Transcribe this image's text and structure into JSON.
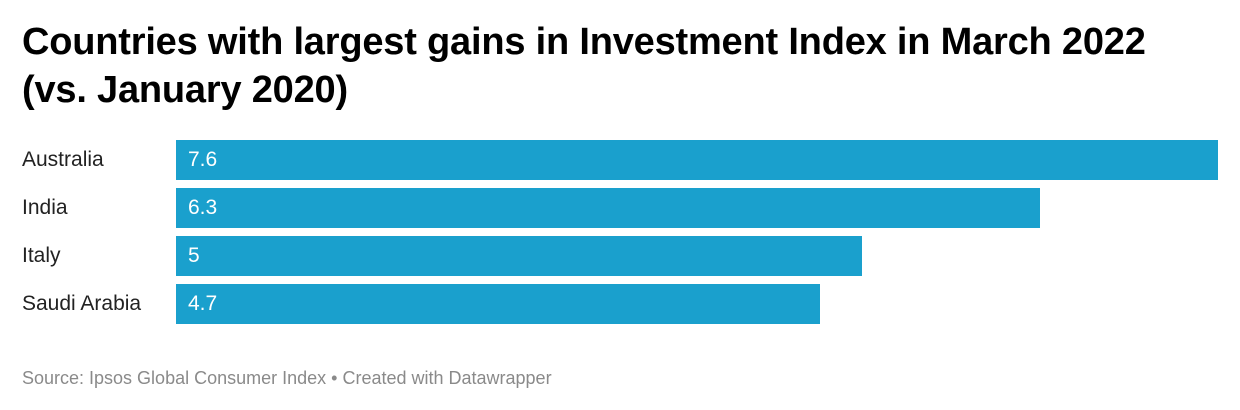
{
  "chart_data": {
    "type": "bar",
    "orientation": "horizontal",
    "title": "Countries with largest gains in Investment Index in March 2022 (vs. January 2020)",
    "categories": [
      "Australia",
      "India",
      "Italy",
      "Saudi Arabia"
    ],
    "values": [
      7.6,
      6.3,
      5,
      4.7
    ],
    "value_labels": [
      "7.6",
      "6.3",
      "5",
      "4.7"
    ],
    "xlim": [
      0,
      7.6
    ],
    "grid": false,
    "bar_color": "#1aa0cd",
    "value_label_color": "#ffffff"
  },
  "footer": {
    "source": "Source: Ipsos Global Consumer Index • Created with Datawrapper"
  }
}
